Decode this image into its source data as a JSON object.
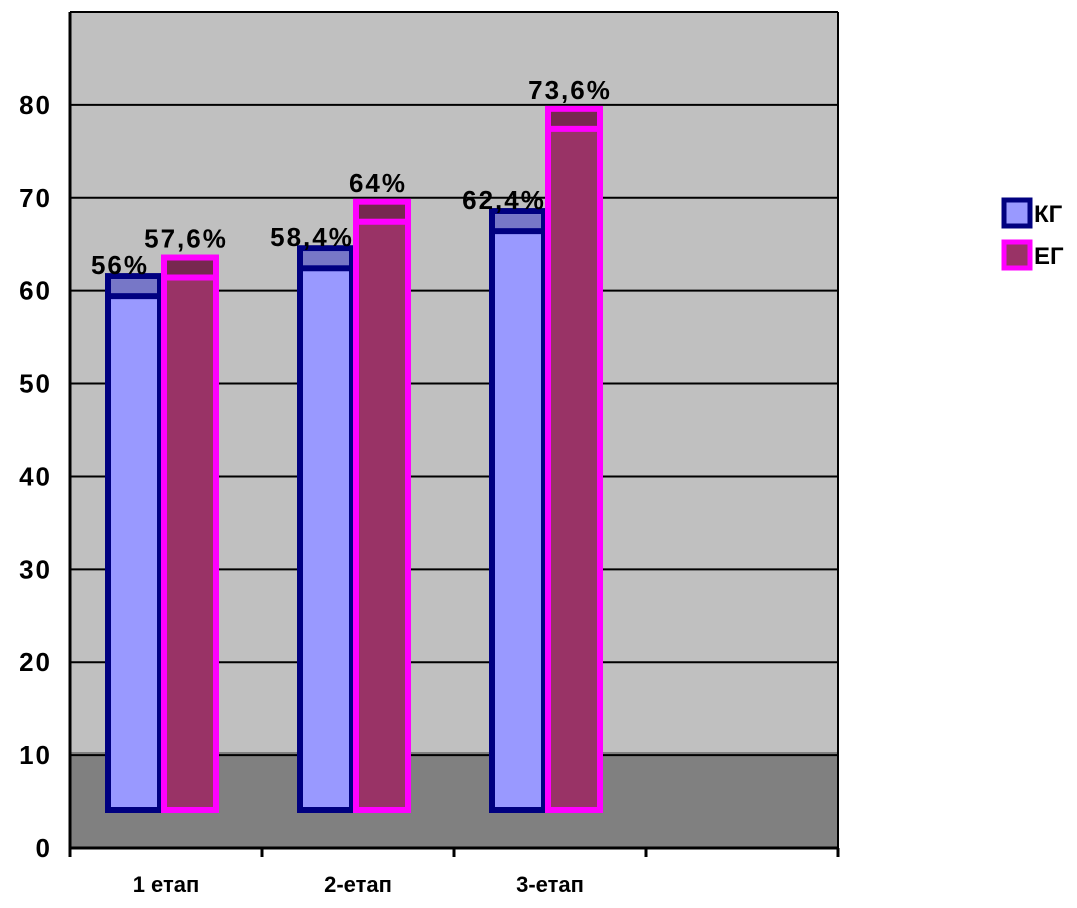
{
  "chart_data": {
    "type": "bar",
    "categories": [
      "1 етап",
      "2-етап",
      "3-етап"
    ],
    "series": [
      {
        "name": "КГ",
        "values": [
          62,
          65,
          69
        ],
        "labels": [
          "56%",
          "58,4%",
          "62,4%"
        ],
        "color": "#9999ff",
        "border": "#000080"
      },
      {
        "name": "ЕГ",
        "values": [
          64,
          70,
          80
        ],
        "labels": [
          "57,6%",
          "64%",
          "73,6%"
        ],
        "color": "#993366",
        "border": "#ff00ff"
      }
    ],
    "ylim": [
      0,
      90
    ],
    "yticks": [
      "0",
      "10",
      "20",
      "30",
      "40",
      "50",
      "60",
      "70",
      "80"
    ],
    "grid": true,
    "legend_position": "right",
    "colors": {
      "wall": "#c0c0c0",
      "floor": "#808080"
    }
  }
}
